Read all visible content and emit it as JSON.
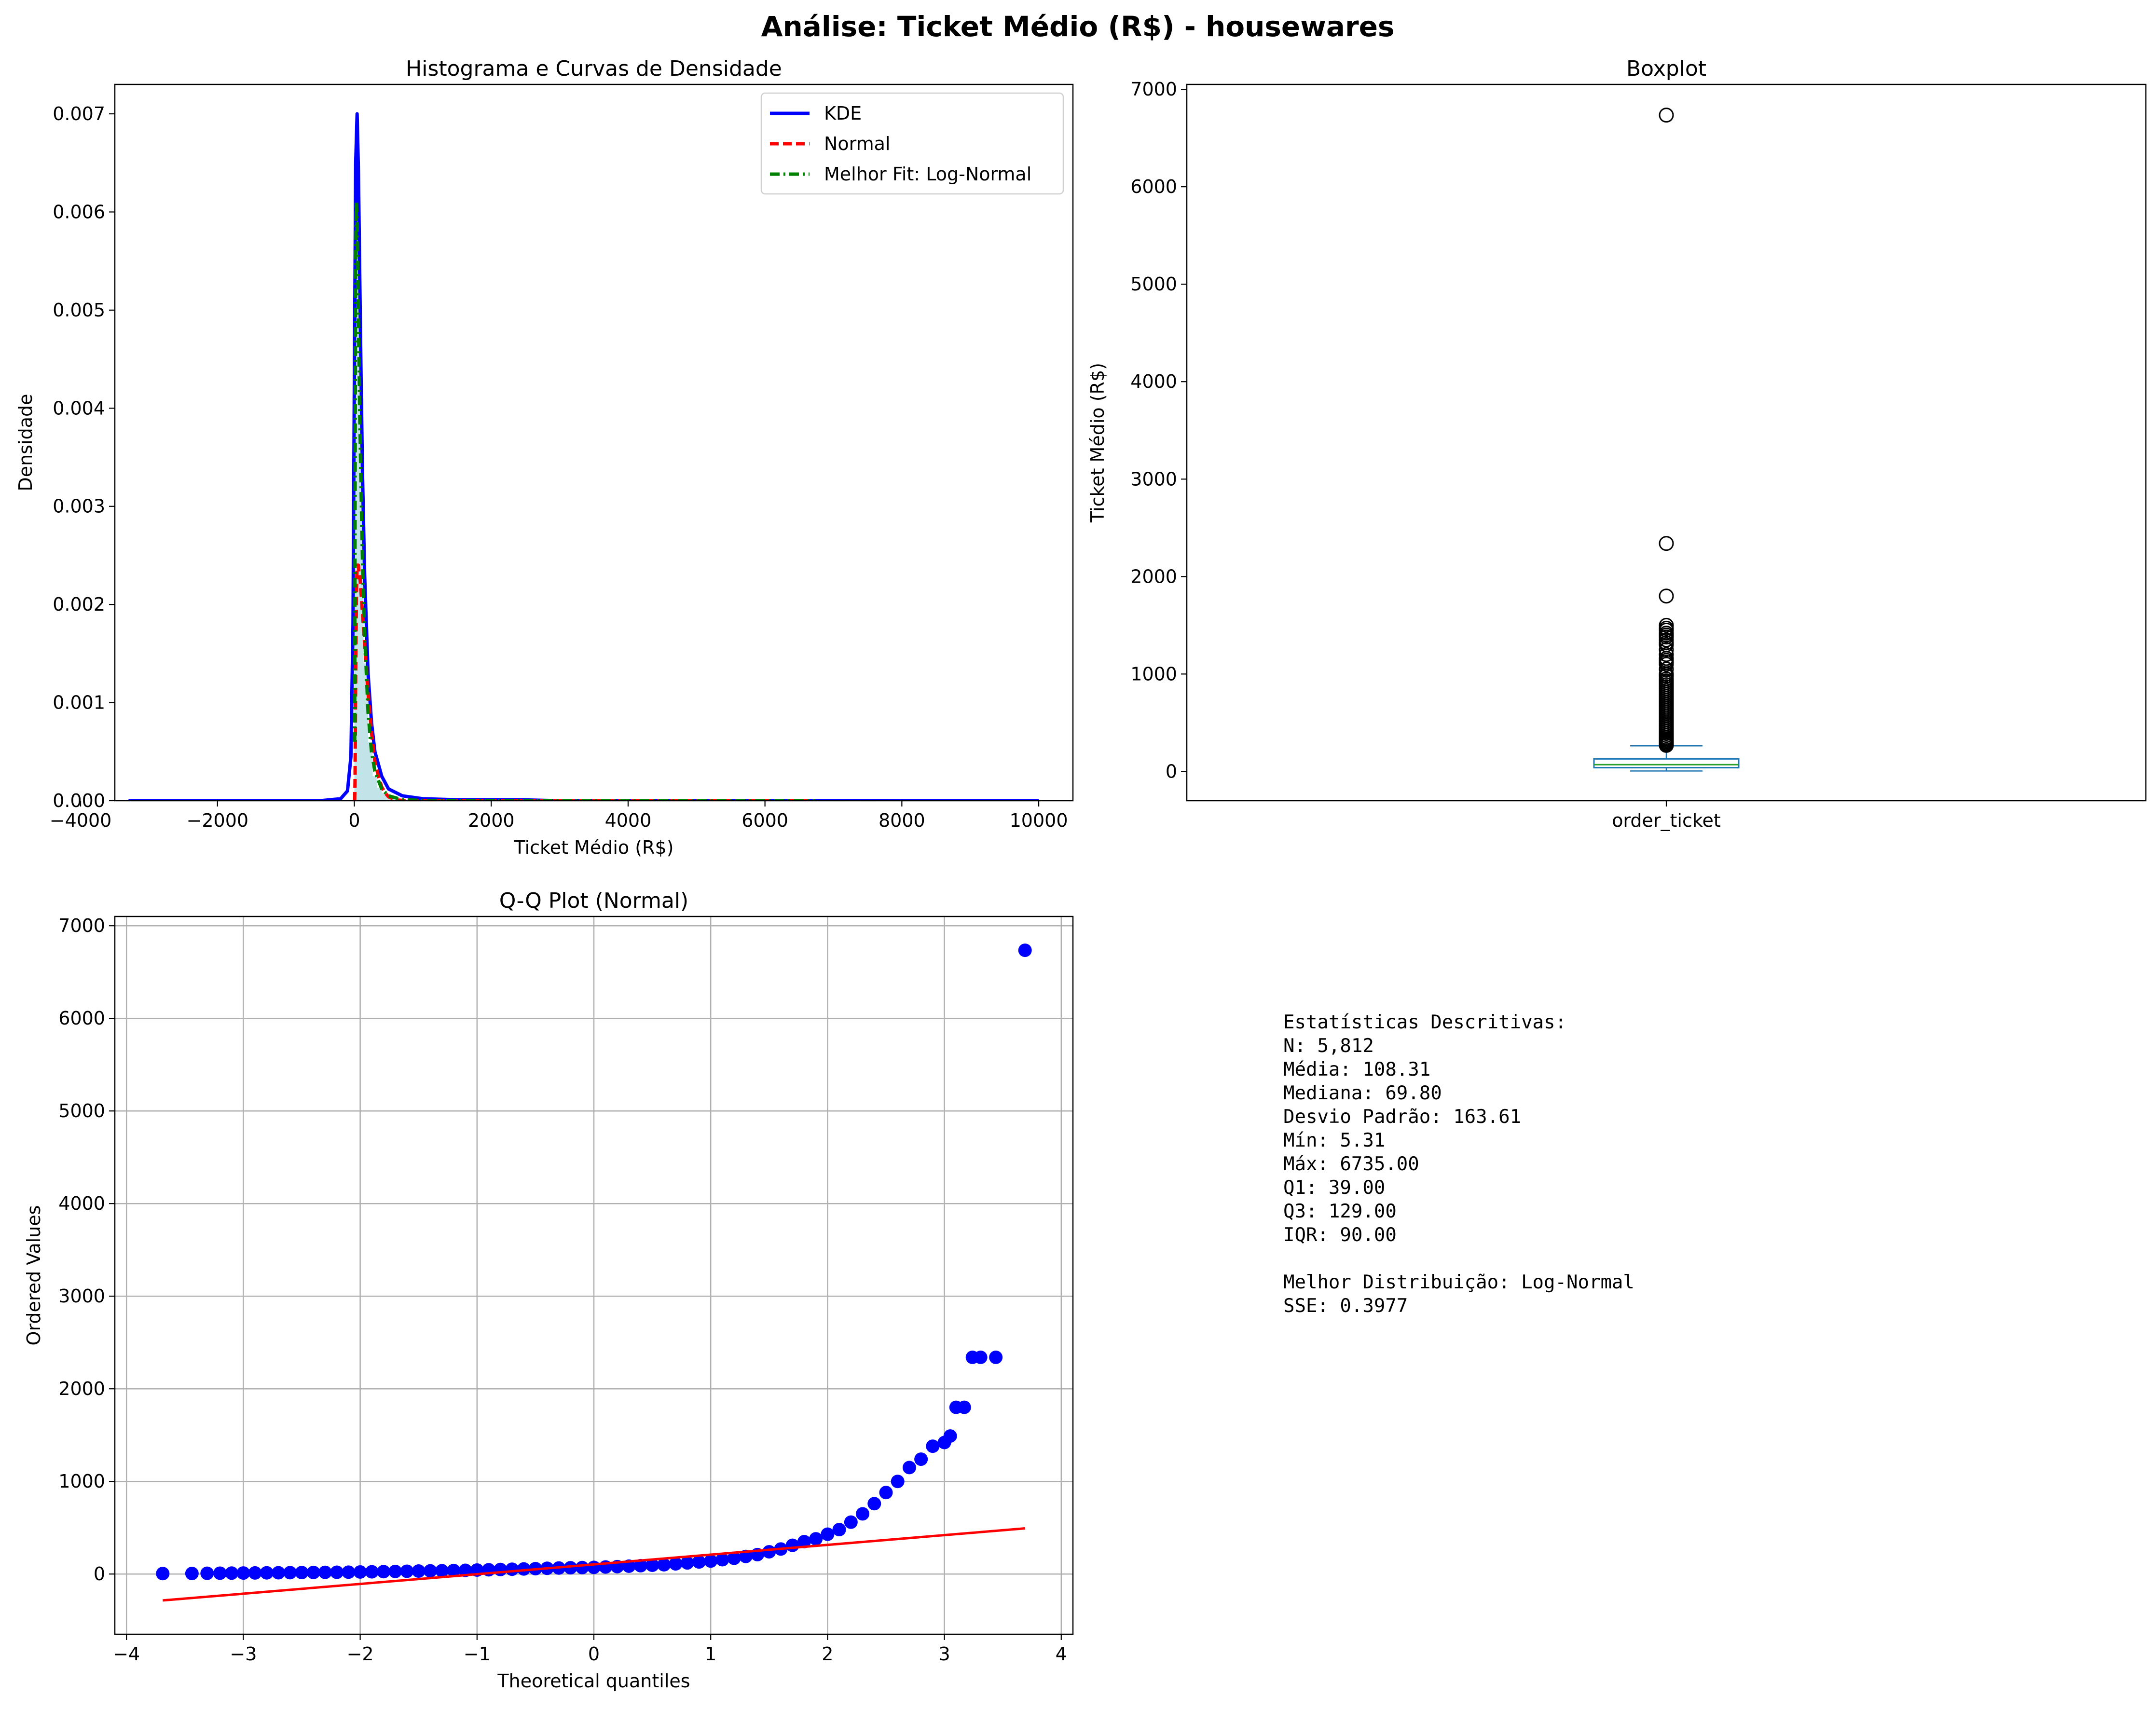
{
  "title": "Análise: Ticket Médio (R$) - housewares",
  "chart_data": [
    {
      "type": "histogram",
      "title": "Histograma e Curvas de Densidade",
      "xlabel": "Ticket Médio (R$)",
      "ylabel": "Densidade",
      "xlim": [
        -3500,
        10500
      ],
      "ylim": [
        0,
        0.0073
      ],
      "xticks": [
        -4000,
        -2000,
        0,
        2000,
        4000,
        6000,
        8000,
        10000
      ],
      "xtick_labels": [
        "−4000",
        "−2000",
        "0",
        "2000",
        "4000",
        "6000",
        "8000",
        "10000"
      ],
      "yticks": [
        0,
        0.001,
        0.002,
        0.003,
        0.004,
        0.005,
        0.006,
        0.007
      ],
      "ytick_labels": [
        "0.000",
        "0.001",
        "0.002",
        "0.003",
        "0.004",
        "0.005",
        "0.006",
        "0.007"
      ],
      "legend_position": "top-right",
      "histogram": {
        "color": "#a8d8e0",
        "bin_edges": [
          0,
          67,
          134,
          201,
          268,
          335,
          402,
          469,
          536,
          603,
          670,
          737,
          804,
          871,
          938,
          1005,
          1072,
          1139,
          1206,
          1273,
          1340,
          1407
        ],
        "density": [
          0.0061,
          0.0041,
          0.0014,
          0.0006,
          0.00025,
          0.00013,
          8e-05,
          5e-05,
          3e-05,
          2e-05,
          1.5e-05,
          1e-05,
          8e-06,
          6e-06,
          5e-06,
          4e-06,
          3e-06,
          3e-06,
          2e-06,
          2e-06,
          2e-06
        ]
      },
      "series": [
        {
          "name": "KDE",
          "color": "#0000ff",
          "style": "solid",
          "x": [
            -3300,
            -500,
            -200,
            -100,
            -50,
            -20,
            0,
            20,
            40,
            60,
            80,
            100,
            120,
            150,
            200,
            250,
            300,
            400,
            500,
            700,
            1000,
            1500,
            2000,
            2400,
            3000,
            5000,
            6800,
            8000,
            10000
          ],
          "y": [
            0,
            0,
            2e-05,
            0.0001,
            0.00045,
            0.0018,
            0.0043,
            0.0065,
            0.007,
            0.0064,
            0.0053,
            0.0042,
            0.0033,
            0.0023,
            0.0013,
            0.0008,
            0.0005,
            0.00025,
            0.00012,
            5e-05,
            2e-05,
            1e-05,
            1e-05,
            1e-05,
            0,
            0,
            2e-06,
            0,
            0
          ]
        },
        {
          "name": "Normal",
          "color": "#ff0000",
          "style": "dashed",
          "x": [
            5,
            10,
            20,
            30,
            40,
            50,
            60,
            70,
            80,
            100,
            120,
            140,
            160,
            180,
            200,
            250,
            300,
            350,
            400,
            450,
            500,
            600,
            700,
            800,
            1000,
            1500,
            3000,
            6735
          ],
          "y": [
            0,
            0.0002,
            0.0013,
            0.0021,
            0.0024,
            0.0024,
            0.0024,
            0.0023,
            0.0023,
            0.0021,
            0.0019,
            0.0017,
            0.0015,
            0.0013,
            0.0011,
            0.0007,
            0.0004,
            0.00025,
            0.00014,
            8e-05,
            4e-05,
            1e-05,
            3e-06,
            0,
            0,
            0,
            0,
            0
          ]
        },
        {
          "name": "Melhor Fit: Log-Normal",
          "color": "#008000",
          "style": "dashdot",
          "x": [
            5,
            10,
            15,
            20,
            30,
            40,
            50,
            60,
            70,
            80,
            100,
            120,
            150,
            200,
            250,
            300,
            400,
            500,
            700,
            1000,
            2000,
            4000,
            6735
          ],
          "y": [
            0.0006,
            0.0027,
            0.0044,
            0.0055,
            0.0061,
            0.0059,
            0.0055,
            0.0049,
            0.0044,
            0.0039,
            0.0031,
            0.0024,
            0.0017,
            0.0009,
            0.0005,
            0.0003,
            0.00012,
            5e-05,
            1e-05,
            3e-06,
            0,
            0,
            0
          ]
        }
      ]
    },
    {
      "type": "boxplot",
      "title": "Boxplot",
      "ylabel": "Ticket Médio (R$)",
      "category": "order_ticket",
      "ylim": [
        -300,
        7050
      ],
      "yticks": [
        0,
        1000,
        2000,
        3000,
        4000,
        5000,
        6000,
        7000
      ],
      "ytick_labels": [
        "0",
        "1000",
        "2000",
        "3000",
        "4000",
        "5000",
        "6000",
        "7000"
      ],
      "box_color": "#1f77b4",
      "median_color": "#2ca02c",
      "min": 5.31,
      "q1": 39.0,
      "median": 69.8,
      "q3": 129.0,
      "whisker_high": 263,
      "outliers": [
        6735,
        2340,
        1800,
        1500,
        1470,
        1450,
        1420,
        1400,
        1380,
        1350,
        1320,
        1300,
        1250,
        1200,
        1160,
        1140,
        1120,
        1100,
        1050,
        1000,
        980,
        950,
        930,
        910,
        890,
        870,
        850,
        830,
        810,
        790,
        770,
        750,
        730,
        710,
        690,
        670,
        650,
        630,
        610,
        590,
        570,
        550,
        530,
        510,
        490,
        470,
        450,
        430,
        410,
        390,
        370,
        350,
        335,
        320,
        305,
        290,
        278,
        268
      ]
    },
    {
      "type": "scatter",
      "title": "Q-Q Plot (Normal)",
      "xlabel": "Theoretical quantiles",
      "ylabel": "Ordered Values",
      "xlim": [
        -4,
        4
      ],
      "ylim": [
        -650,
        7100
      ],
      "grid": true,
      "xticks": [
        -4,
        -3,
        -2,
        -1,
        0,
        1,
        2,
        3,
        4
      ],
      "xtick_labels": [
        "−4",
        "−3",
        "−2",
        "−1",
        "0",
        "1",
        "2",
        "3",
        "4"
      ],
      "yticks": [
        0,
        1000,
        2000,
        3000,
        4000,
        5000,
        6000,
        7000
      ],
      "ytick_labels": [
        "0",
        "1000",
        "2000",
        "3000",
        "4000",
        "5000",
        "6000",
        "7000"
      ],
      "points_color": "#0000ff",
      "line_color": "#ff0000",
      "points_x": [
        -3.69,
        -3.44,
        -3.31,
        -3.2,
        -3.1,
        -3.0,
        -2.9,
        -2.8,
        -2.7,
        -2.6,
        -2.5,
        -2.4,
        -2.3,
        -2.2,
        -2.1,
        -2.0,
        -1.9,
        -1.8,
        -1.7,
        -1.6,
        -1.5,
        -1.4,
        -1.3,
        -1.2,
        -1.1,
        -1.0,
        -0.9,
        -0.8,
        -0.7,
        -0.6,
        -0.5,
        -0.4,
        -0.3,
        -0.2,
        -0.1,
        0.0,
        0.1,
        0.2,
        0.3,
        0.4,
        0.5,
        0.6,
        0.7,
        0.8,
        0.9,
        1.0,
        1.1,
        1.2,
        1.3,
        1.4,
        1.5,
        1.6,
        1.7,
        1.8,
        1.9,
        2.0,
        2.1,
        2.2,
        2.3,
        2.4,
        2.5,
        2.6,
        2.7,
        2.8,
        2.9,
        3.0,
        3.05,
        3.1,
        3.17,
        3.24,
        3.31,
        3.44,
        3.69
      ],
      "points_y": [
        5,
        6,
        8,
        9,
        10,
        11,
        12,
        13,
        14,
        15,
        16,
        17,
        18,
        19,
        20,
        22,
        24,
        26,
        28,
        30,
        32,
        34,
        36,
        38,
        40,
        43,
        46,
        49,
        52,
        55,
        58,
        62,
        65,
        68,
        70,
        72,
        76,
        80,
        85,
        90,
        95,
        100,
        110,
        120,
        130,
        140,
        155,
        170,
        190,
        210,
        240,
        270,
        310,
        350,
        380,
        430,
        480,
        560,
        650,
        760,
        880,
        1000,
        1150,
        1240,
        1380,
        1420,
        1490,
        1800,
        1800,
        2340,
        2340,
        2340,
        6735
      ],
      "fit_line": {
        "x": [
          -3.69,
          3.69
        ],
        "y": [
          -285,
          493
        ]
      }
    }
  ],
  "stats": {
    "header": "Estatísticas Descritivas:",
    "n": "N: 5,812",
    "mean": "Média: 108.31",
    "median": "Mediana: 69.80",
    "std": "Desvio Padrão: 163.61",
    "min": "Mín: 5.31",
    "max": "Máx: 6735.00",
    "q1": "Q1: 39.00",
    "q3": "Q3: 129.00",
    "iqr": "IQR: 90.00",
    "best_dist": "Melhor Distribuição: Log-Normal",
    "sse": "SSE: 0.3977"
  }
}
